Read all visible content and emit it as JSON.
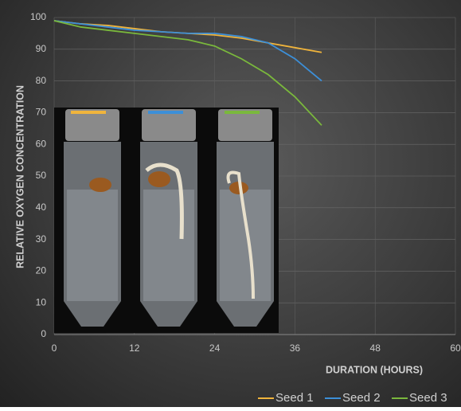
{
  "chart_data": {
    "type": "line",
    "x": [
      0,
      4,
      8,
      12,
      16,
      20,
      24,
      28,
      32,
      36,
      40
    ],
    "series": [
      {
        "name": "Seed 1",
        "color": "#f0b43c",
        "values": [
          99,
          98,
          97.5,
          96.5,
          95.5,
          95,
          94.5,
          93.5,
          92,
          90.5,
          89
        ]
      },
      {
        "name": "Seed 2",
        "color": "#3c8fd8",
        "values": [
          99,
          98,
          97,
          96,
          95.5,
          95,
          95,
          94,
          92,
          87,
          80
        ]
      },
      {
        "name": "Seed 3",
        "color": "#7ab83c",
        "values": [
          99,
          97,
          96,
          95,
          94,
          93,
          91,
          87,
          82,
          75,
          66
        ]
      }
    ],
    "xlabel": "DURATION (HOURS)",
    "ylabel": "RELATIVE OXYGEN CONCENTRATION",
    "xlim": [
      0,
      60
    ],
    "xticks": [
      0,
      12,
      24,
      36,
      48,
      60
    ],
    "ylim": [
      0,
      100
    ],
    "yticks": [
      0,
      10,
      20,
      30,
      40,
      50,
      60,
      70,
      80,
      90,
      100
    ],
    "grid": true
  }
}
